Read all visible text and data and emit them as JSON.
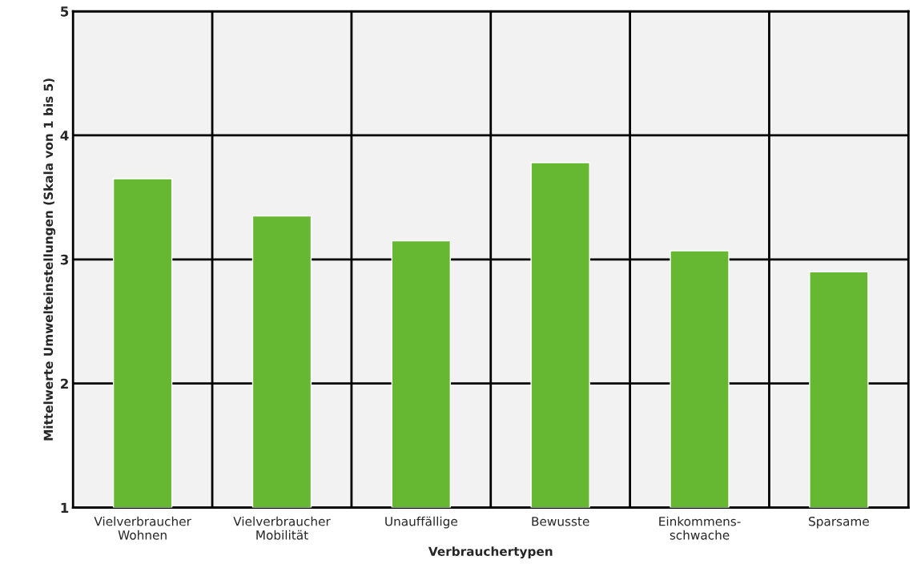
{
  "chart_data": {
    "type": "bar",
    "xlabel": "Verbrauchertypen",
    "ylabel": "Mittelwerte Umwelteinstellungen (Skala von 1 bis 5)",
    "categories": [
      "Vielverbraucher\nWohnen",
      "Vielverbraucher\nMobilität",
      "Unauffällige",
      "Bewusste",
      "Einkommens-\nschwache",
      "Sparsame"
    ],
    "values": [
      3.65,
      3.35,
      3.15,
      3.78,
      3.07,
      2.9
    ],
    "color": "#66b832",
    "ylim": [
      1,
      5
    ],
    "yticks": [
      1,
      2,
      3,
      4,
      5
    ],
    "grid": true
  }
}
